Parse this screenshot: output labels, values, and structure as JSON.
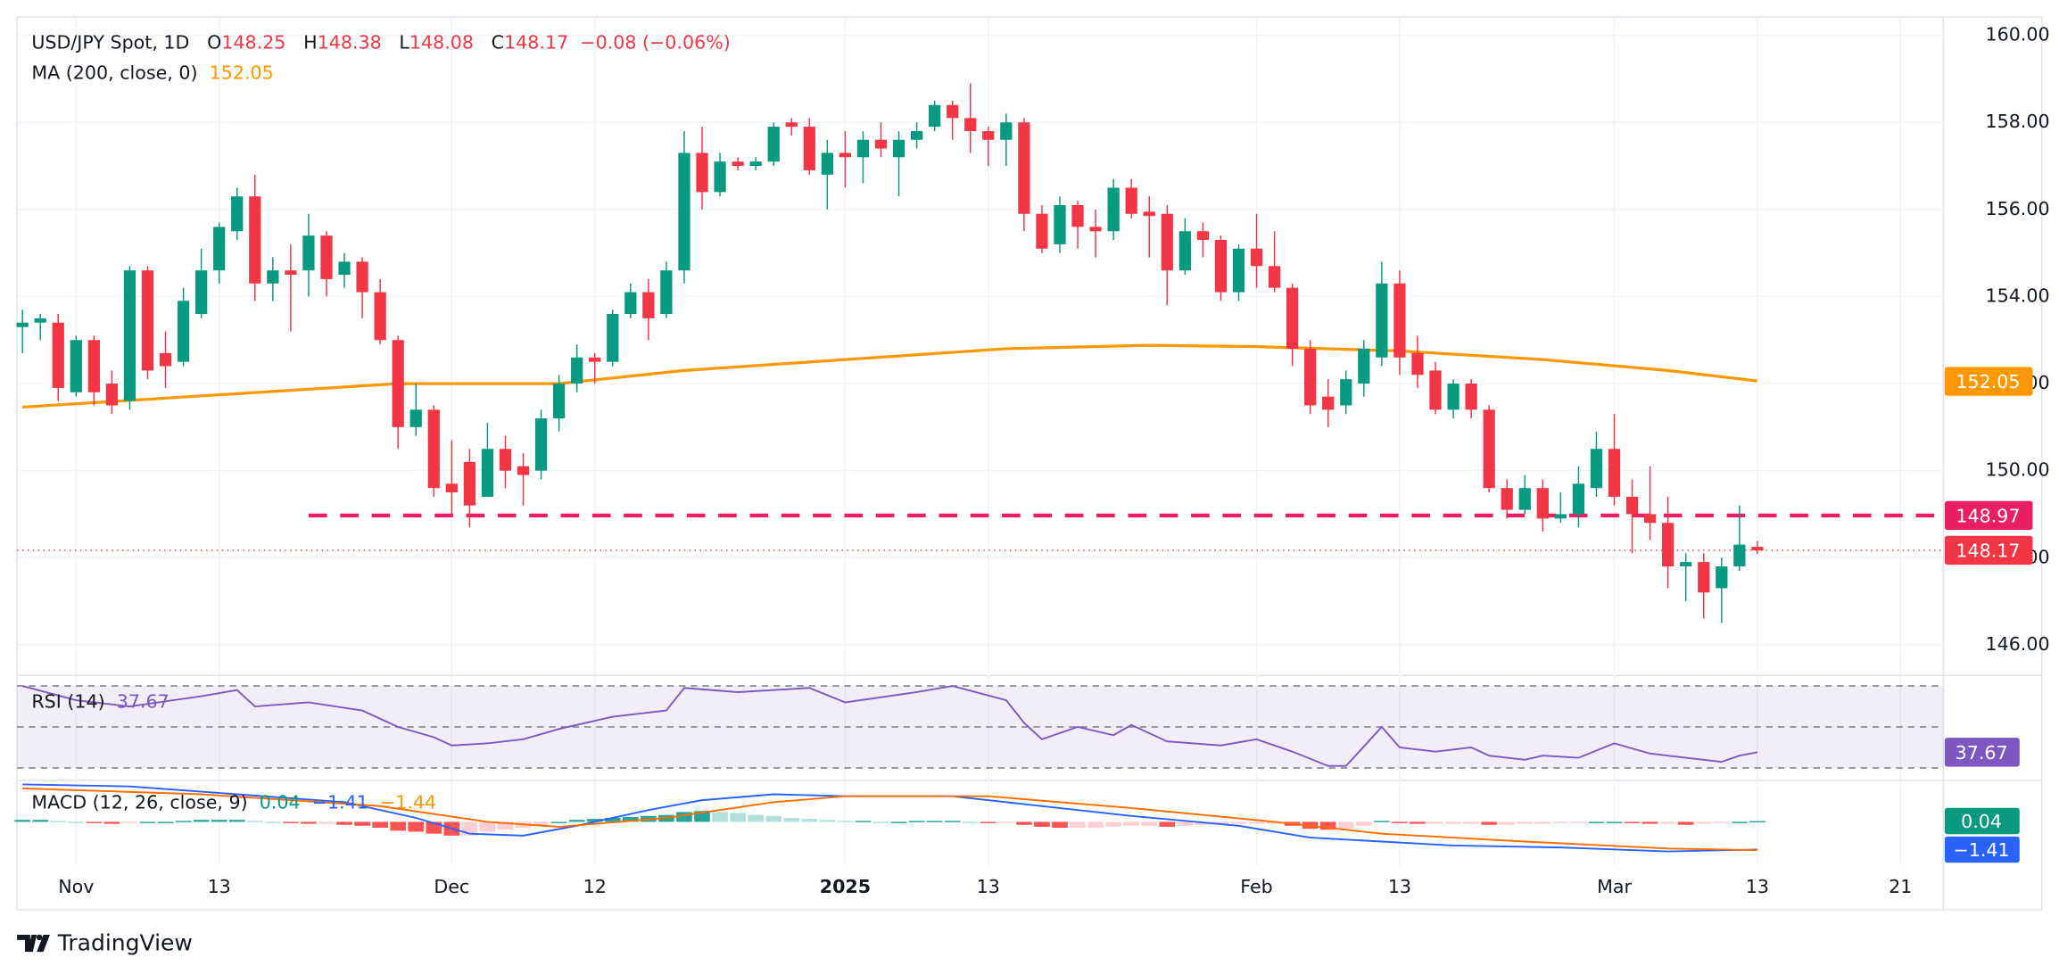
{
  "header": {
    "symbol": "USD/JPY Spot, 1D",
    "ohlc": [
      [
        "O",
        "148.25"
      ],
      [
        "H",
        "148.38"
      ],
      [
        "L",
        "148.08"
      ],
      [
        "C",
        "148.17"
      ]
    ],
    "change": "−0.08 (−0.06%)",
    "ma_label": "MA (200, close, 0)",
    "ma_value": "152.05",
    "rsi_label": "RSI (14)",
    "rsi_value": "37.67",
    "macd_label": "MACD (12, 26, close, 9)",
    "macd_values": [
      "0.04",
      "−1.41",
      "−1.44"
    ]
  },
  "footer": {
    "brand": "TradingView"
  },
  "chart_data": {
    "type": "candlestick",
    "xlim": [
      -0.3,
      107.4
    ],
    "xticks": [
      {
        "value": 3,
        "label": "Nov"
      },
      {
        "value": 11,
        "label": "13"
      },
      {
        "value": 24,
        "label": "Dec"
      },
      {
        "value": 32,
        "label": "12"
      },
      {
        "value": 46,
        "label": "2025"
      },
      {
        "value": 54,
        "label": "13"
      },
      {
        "value": 69,
        "label": "Feb"
      },
      {
        "value": 77,
        "label": "13"
      },
      {
        "value": 89,
        "label": "Mar"
      },
      {
        "value": 97,
        "label": "13"
      },
      {
        "value": 105,
        "label": "21"
      }
    ],
    "ylim": [
      145.37,
      160.42
    ],
    "yticks": [
      {
        "value": 146,
        "label": "146.00"
      },
      {
        "value": 148,
        "label": "148.00"
      },
      {
        "value": 150,
        "label": "150.00"
      },
      {
        "value": 152,
        "label": "152.00"
      },
      {
        "value": 154,
        "label": "154.00"
      },
      {
        "value": 156,
        "label": "156.00"
      },
      {
        "value": 158,
        "label": "158.00"
      },
      {
        "value": 160,
        "label": "160.00"
      }
    ],
    "grid": true,
    "candles": {
      "up_color": "#089981",
      "down_color": "#f23645",
      "open": [
        153.3,
        153.4,
        153.4,
        151.8,
        153.0,
        152.0,
        151.6,
        154.6,
        152.7,
        152.5,
        153.6,
        154.6,
        155.5,
        156.3,
        154.3,
        154.6,
        154.6,
        155.4,
        154.5,
        154.8,
        154.1,
        153.0,
        151.0,
        151.4,
        149.7,
        150.2,
        149.4,
        150.5,
        150.1,
        150.0,
        151.2,
        152.0,
        152.6,
        152.5,
        153.6,
        154.1,
        153.6,
        154.6,
        157.3,
        156.4,
        157.1,
        157.0,
        157.1,
        158.0,
        157.9,
        156.8,
        157.3,
        157.2,
        157.6,
        157.2,
        157.6,
        157.9,
        158.4,
        158.1,
        157.8,
        157.6,
        158.0,
        155.9,
        155.2,
        156.1,
        155.6,
        155.5,
        156.5,
        155.95,
        155.9,
        154.6,
        155.5,
        155.3,
        154.1,
        155.1,
        154.7,
        154.2,
        152.8,
        151.7,
        151.5,
        152.0,
        152.6,
        154.3,
        152.7,
        152.3,
        151.4,
        152.0,
        151.4,
        149.6,
        149.1,
        149.6,
        148.9,
        149.0,
        149.6,
        150.5,
        149.4,
        149.0,
        148.8,
        147.8,
        147.9,
        147.3,
        147.8,
        148.25
      ],
      "high": [
        153.7,
        153.6,
        153.6,
        153.1,
        153.1,
        152.3,
        154.7,
        154.7,
        153.2,
        154.2,
        155.1,
        155.7,
        156.5,
        156.8,
        154.9,
        155.2,
        155.9,
        155.5,
        155.0,
        154.9,
        154.4,
        153.1,
        152.0,
        151.5,
        150.7,
        150.5,
        151.1,
        150.8,
        150.4,
        151.4,
        152.2,
        152.9,
        152.7,
        153.7,
        154.3,
        154.4,
        154.8,
        157.8,
        157.9,
        157.3,
        157.2,
        157.2,
        158.0,
        158.1,
        158.1,
        157.6,
        157.8,
        157.8,
        158.0,
        157.8,
        158.0,
        158.5,
        158.5,
        158.9,
        157.9,
        158.2,
        158.1,
        156.1,
        156.3,
        156.2,
        156.0,
        156.7,
        156.7,
        156.3,
        156.1,
        155.8,
        155.7,
        155.4,
        155.2,
        155.9,
        155.5,
        154.3,
        153.0,
        152.1,
        152.3,
        153.0,
        154.8,
        154.6,
        153.1,
        152.5,
        152.1,
        152.1,
        151.5,
        149.8,
        149.9,
        149.8,
        149.5,
        150.1,
        150.9,
        151.3,
        149.8,
        150.1,
        149.4,
        148.1,
        148.1,
        148.0,
        149.2,
        148.38
      ],
      "low": [
        152.7,
        153.0,
        151.6,
        151.7,
        151.5,
        151.3,
        151.4,
        152.1,
        151.9,
        152.4,
        153.5,
        154.3,
        155.3,
        153.9,
        153.9,
        153.2,
        154.0,
        154.0,
        154.2,
        153.5,
        152.9,
        150.5,
        150.8,
        149.4,
        149.0,
        148.7,
        149.4,
        149.6,
        149.2,
        149.8,
        150.9,
        151.8,
        152.0,
        152.4,
        153.5,
        153.0,
        153.5,
        154.3,
        156.0,
        156.3,
        156.9,
        156.9,
        157.0,
        157.7,
        156.8,
        156.0,
        156.5,
        156.6,
        157.2,
        156.3,
        157.4,
        157.8,
        157.6,
        157.3,
        157.0,
        157.0,
        155.5,
        155.0,
        155.0,
        155.1,
        154.9,
        155.3,
        155.8,
        154.9,
        153.8,
        154.5,
        154.9,
        153.9,
        153.9,
        154.2,
        154.1,
        152.4,
        151.3,
        151.0,
        151.3,
        151.7,
        152.4,
        152.2,
        151.9,
        151.3,
        151.2,
        151.2,
        149.5,
        148.9,
        149.0,
        148.6,
        148.8,
        148.7,
        149.4,
        149.2,
        148.1,
        148.4,
        147.3,
        147.0,
        146.6,
        146.5,
        147.7,
        148.08
      ],
      "close": [
        153.4,
        153.5,
        151.9,
        153.0,
        151.8,
        151.5,
        154.6,
        152.3,
        152.4,
        153.9,
        154.6,
        155.6,
        156.3,
        154.3,
        154.6,
        154.5,
        155.4,
        154.4,
        154.8,
        154.1,
        153.0,
        151.0,
        151.4,
        149.6,
        149.5,
        149.2,
        150.5,
        150.0,
        149.9,
        151.2,
        152.0,
        152.6,
        152.5,
        153.6,
        154.1,
        153.5,
        154.6,
        157.3,
        156.4,
        157.1,
        157.0,
        157.1,
        157.9,
        157.9,
        156.9,
        157.3,
        157.2,
        157.6,
        157.4,
        157.6,
        157.8,
        158.4,
        158.1,
        157.8,
        157.6,
        158.0,
        155.9,
        155.1,
        156.1,
        155.6,
        155.5,
        156.5,
        155.9,
        155.85,
        154.6,
        155.5,
        155.3,
        154.1,
        155.1,
        154.7,
        154.2,
        152.8,
        151.5,
        151.4,
        152.1,
        152.8,
        154.3,
        152.6,
        152.2,
        151.4,
        152.0,
        151.4,
        149.6,
        149.1,
        149.6,
        148.9,
        149.0,
        149.7,
        150.5,
        149.4,
        149.0,
        148.8,
        147.8,
        147.9,
        147.2,
        147.8,
        148.3,
        148.17
      ]
    },
    "ma": {
      "color": "#ff9800",
      "x": [
        0,
        21,
        30,
        37,
        46,
        55,
        63,
        69,
        77,
        85,
        92,
        97
      ],
      "values": [
        151.46,
        152.0,
        152.0,
        152.3,
        152.55,
        152.8,
        152.88,
        152.85,
        152.75,
        152.55,
        152.3,
        152.06
      ]
    },
    "levels": [
      {
        "value": 148.97,
        "start": 16,
        "style": "dashed",
        "color": "#e91e63"
      },
      {
        "value": 148.17,
        "start": -0.3,
        "style": "dotted",
        "color": "#f23645"
      }
    ],
    "badges": [
      {
        "value": 152.05,
        "label": "152.05",
        "color": "#ff9800"
      },
      {
        "value": 148.97,
        "label": "148.97",
        "color": "#e91e63"
      },
      {
        "value": 148.17,
        "label": "148.17",
        "color": "#f23645"
      }
    ],
    "rsi": {
      "color": "#7e57c2",
      "ylim": [
        25.5,
        73.5
      ],
      "bands": [
        70,
        50,
        30
      ],
      "x": [
        0,
        3,
        6,
        10,
        12,
        13,
        16,
        19,
        21,
        23,
        24,
        26,
        28,
        30,
        33,
        36,
        37,
        40,
        44,
        46,
        50,
        52,
        55,
        56,
        57,
        59,
        61,
        62,
        64,
        67,
        69,
        71,
        73,
        74,
        76,
        77,
        79,
        81,
        82,
        84,
        85,
        87,
        89,
        91,
        93,
        95,
        96,
        97
      ],
      "values": [
        70,
        63,
        60,
        65,
        68,
        60,
        62,
        58,
        50,
        45,
        41,
        42,
        44,
        49,
        55,
        58,
        69,
        67,
        69,
        62,
        67,
        70,
        63,
        52,
        44,
        50,
        46,
        51,
        43,
        41,
        44,
        38,
        31,
        31,
        50,
        40,
        38,
        40,
        36,
        34,
        36,
        35,
        42,
        37,
        35,
        33,
        36,
        37.67
      ],
      "badge": {
        "value": 37.67,
        "label": "37.67"
      }
    },
    "macd": {
      "ylim": [
        -2.2,
        2.0
      ],
      "macd_color": "#2962ff",
      "signal_color": "#ff6d00",
      "hist_colors": [
        "#26a69a",
        "#b2dfdb",
        "#ff5252",
        "#ffcdd2"
      ],
      "macd_x": [
        0,
        6,
        12,
        18,
        22,
        25,
        28,
        31,
        35,
        38,
        42,
        46,
        52,
        56,
        62,
        68,
        72,
        76,
        80,
        86,
        92,
        97
      ],
      "macd_values": [
        1.9,
        1.8,
        1.4,
        1.0,
        0.2,
        -0.6,
        -0.7,
        -0.2,
        0.6,
        1.1,
        1.4,
        1.3,
        1.3,
        0.9,
        0.3,
        -0.2,
        -0.8,
        -1.0,
        -1.2,
        -1.3,
        -1.5,
        -1.41
      ],
      "signal_x": [
        0,
        10,
        20,
        26,
        30,
        36,
        42,
        46,
        54,
        62,
        70,
        76,
        84,
        92,
        97
      ],
      "signal_values": [
        1.7,
        1.4,
        0.8,
        0.0,
        -0.25,
        0.2,
        1.0,
        1.3,
        1.3,
        0.7,
        0.0,
        -0.6,
        -1.0,
        -1.35,
        -1.44
      ],
      "hist": [
        0.1,
        0.1,
        0.05,
        0,
        -0.05,
        -0.1,
        -0.05,
        0,
        0,
        0.05,
        0.1,
        0.1,
        0.1,
        0.05,
        0,
        -0.05,
        -0.1,
        -0.1,
        -0.15,
        -0.2,
        -0.3,
        -0.45,
        -0.5,
        -0.6,
        -0.7,
        -0.7,
        -0.5,
        -0.4,
        -0.3,
        -0.15,
        0,
        0.1,
        0.15,
        0.2,
        0.25,
        0.3,
        0.35,
        0.5,
        0.55,
        0.5,
        0.45,
        0.35,
        0.3,
        0.2,
        0.15,
        0.1,
        0.05,
        0.05,
        0,
        0,
        0.05,
        0.05,
        0.05,
        0,
        -0.05,
        -0.05,
        -0.15,
        -0.25,
        -0.3,
        -0.3,
        -0.3,
        -0.25,
        -0.2,
        -0.2,
        -0.25,
        -0.2,
        -0.15,
        -0.15,
        -0.1,
        -0.1,
        -0.1,
        -0.2,
        -0.35,
        -0.4,
        -0.35,
        -0.2,
        0.05,
        -0.05,
        -0.1,
        -0.1,
        -0.1,
        -0.1,
        -0.15,
        -0.15,
        -0.1,
        -0.1,
        -0.05,
        -0.05,
        0,
        0,
        -0.05,
        -0.1,
        -0.1,
        -0.15,
        -0.1,
        -0.05,
        0,
        0.04
      ],
      "badges": [
        {
          "value": 0.04,
          "label": "0.04",
          "color": "#089981"
        },
        {
          "value": -1.41,
          "label": "−1.41",
          "color": "#2962ff"
        }
      ]
    }
  }
}
